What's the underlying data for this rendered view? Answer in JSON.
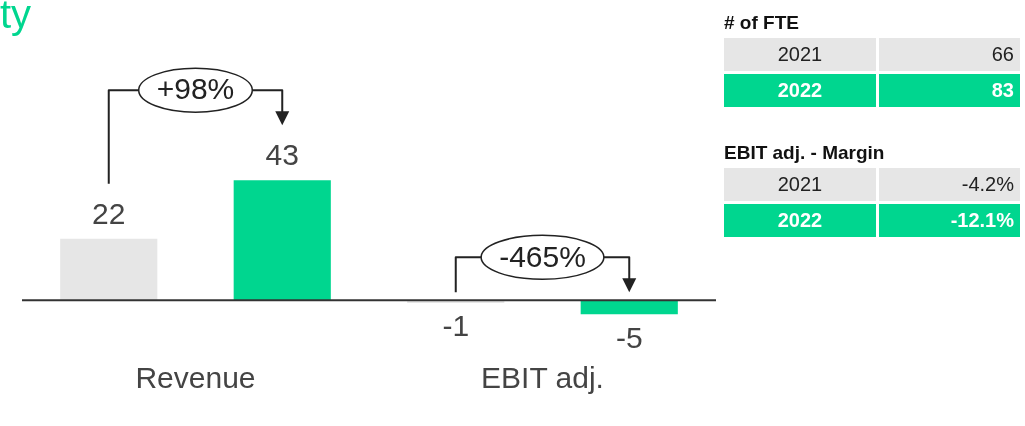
{
  "chart_data": [
    {
      "type": "bar",
      "title": "ty",
      "categories": [
        "Revenue",
        "EBIT adj."
      ],
      "series": [
        {
          "color": "#e6e6e6",
          "values": [
            22,
            -1
          ]
        },
        {
          "color": "#00d68f",
          "values": [
            43,
            -5
          ]
        }
      ],
      "data_labels": true,
      "legend": false,
      "grid": false,
      "annotations": [
        "+98%",
        "-465%"
      ]
    },
    {
      "type": "other",
      "title": "# of FTE",
      "categories": [
        "2021",
        "2022"
      ],
      "values": [
        66,
        83
      ],
      "colors": [
        "#e6e6e6",
        "#00d68f"
      ],
      "data_labels": true
    },
    {
      "type": "other",
      "title": "EBIT adj. - Margin",
      "categories": [
        "2021",
        "2022"
      ],
      "values": [
        -4.2,
        -12.1
      ],
      "value_labels": [
        "-4.2%",
        "-12.1%"
      ],
      "colors": [
        "#e6e6e6",
        "#00d68f"
      ]
    }
  ]
}
